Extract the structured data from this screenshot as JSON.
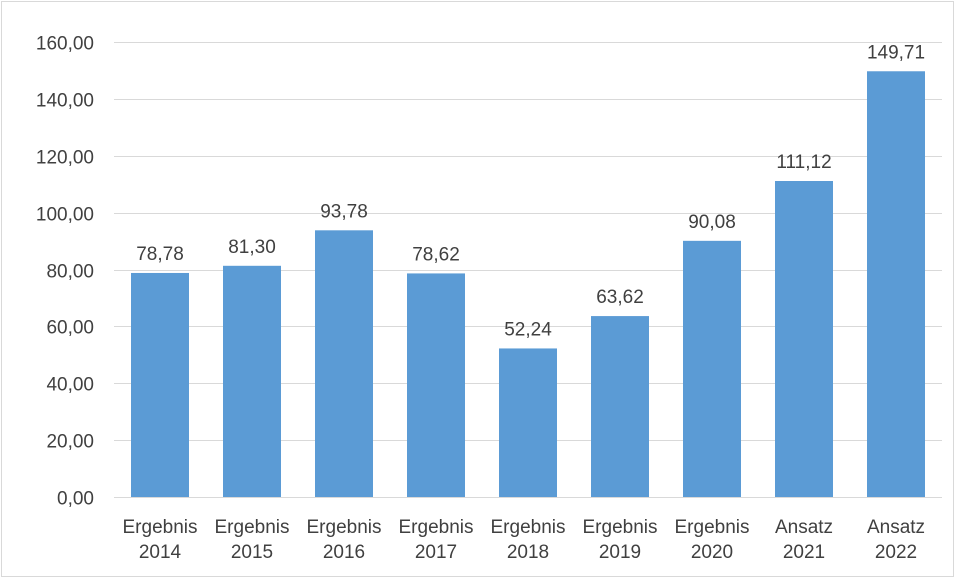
{
  "chart_data": {
    "type": "bar",
    "title": "",
    "xlabel": "",
    "ylabel": "",
    "categories": [
      [
        "Ergebnis",
        "2014"
      ],
      [
        "Ergebnis",
        "2015"
      ],
      [
        "Ergebnis",
        "2016"
      ],
      [
        "Ergebnis",
        "2017"
      ],
      [
        "Ergebnis",
        "2018"
      ],
      [
        "Ergebnis",
        "2019"
      ],
      [
        "Ergebnis",
        "2020"
      ],
      [
        "Ansatz",
        "2021"
      ],
      [
        "Ansatz",
        "2022"
      ]
    ],
    "values": [
      78.78,
      81.3,
      93.78,
      78.62,
      52.24,
      63.62,
      90.08,
      111.12,
      149.71
    ],
    "value_labels": [
      "78,78",
      "81,30",
      "93,78",
      "78,62",
      "52,24",
      "63,62",
      "90,08",
      "111,12",
      "149,71"
    ],
    "ylim": [
      0,
      160
    ],
    "yticks": [
      0,
      20,
      40,
      60,
      80,
      100,
      120,
      140,
      160
    ],
    "ytick_labels": [
      "0,00",
      "20,00",
      "40,00",
      "60,00",
      "80,00",
      "100,00",
      "120,00",
      "140,00",
      "160,00"
    ],
    "grid": true,
    "legend": "none",
    "colors": {
      "bar": "#5b9bd5",
      "grid": "#d9d9d9",
      "text": "#404040",
      "border": "#d9d9d9"
    }
  }
}
